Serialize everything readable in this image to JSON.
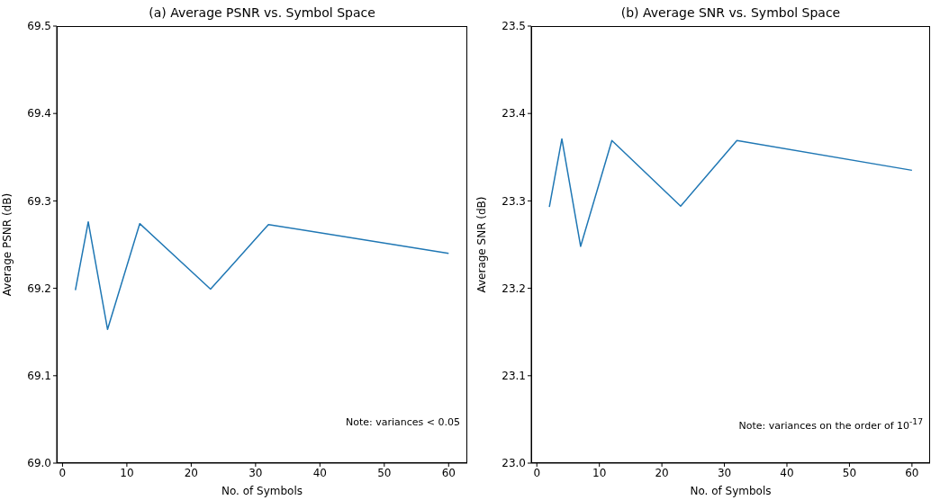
{
  "chart_data": [
    {
      "type": "line",
      "title": "(a) Average PSNR vs. Symbol Space",
      "xlabel": "No. of Symbols",
      "ylabel": "Average PSNR (dB)",
      "x": [
        2,
        4,
        7,
        12,
        23,
        32,
        60
      ],
      "series": [
        {
          "color": "#1f77b4",
          "values": [
            69.198,
            69.276,
            69.153,
            69.274,
            69.199,
            69.273,
            69.24
          ]
        }
      ],
      "xlim": [
        -0.9,
        62.9
      ],
      "xticks": [
        0,
        10,
        20,
        30,
        40,
        50,
        60
      ],
      "ylim": [
        69.0,
        69.5
      ],
      "yticks": [
        {
          "value": 69.0,
          "label": "69.0"
        },
        {
          "value": 69.1,
          "label": "69.1"
        },
        {
          "value": 69.2,
          "label": "69.2"
        },
        {
          "value": 69.3,
          "label": "69.3"
        },
        {
          "value": 69.4,
          "label": "69.4"
        },
        {
          "value": 69.5,
          "label": "69.5"
        }
      ],
      "annotations": [
        "Note: variances < 0.05"
      ],
      "grid": false,
      "legend": false,
      "marker": "none",
      "line_style": "solid"
    },
    {
      "type": "line",
      "title": "(b) Average SNR vs. Symbol Space",
      "xlabel": "No. of Symbols",
      "ylabel": "Average SNR (dB)",
      "x": [
        2,
        4,
        7,
        12,
        23,
        32,
        60
      ],
      "series": [
        {
          "color": "#1f77b4",
          "values": [
            23.293,
            23.371,
            23.248,
            23.369,
            23.294,
            23.369,
            23.335
          ]
        }
      ],
      "xlim": [
        -0.9,
        62.9
      ],
      "xticks": [
        0,
        10,
        20,
        30,
        40,
        50,
        60
      ],
      "ylim": [
        23.0,
        23.5
      ],
      "yticks": [
        {
          "value": 23.0,
          "label": "23.0"
        },
        {
          "value": 23.1,
          "label": "23.1"
        },
        {
          "value": 23.2,
          "label": "23.2"
        },
        {
          "value": 23.3,
          "label": "23.3"
        },
        {
          "value": 23.4,
          "label": "23.4"
        },
        {
          "value": 23.5,
          "label": "23.5"
        }
      ],
      "annotations": [
        "Note: variances on the order of 10$^{-17}$"
      ],
      "grid": false,
      "legend": false,
      "marker": "none",
      "line_style": "solid"
    }
  ]
}
